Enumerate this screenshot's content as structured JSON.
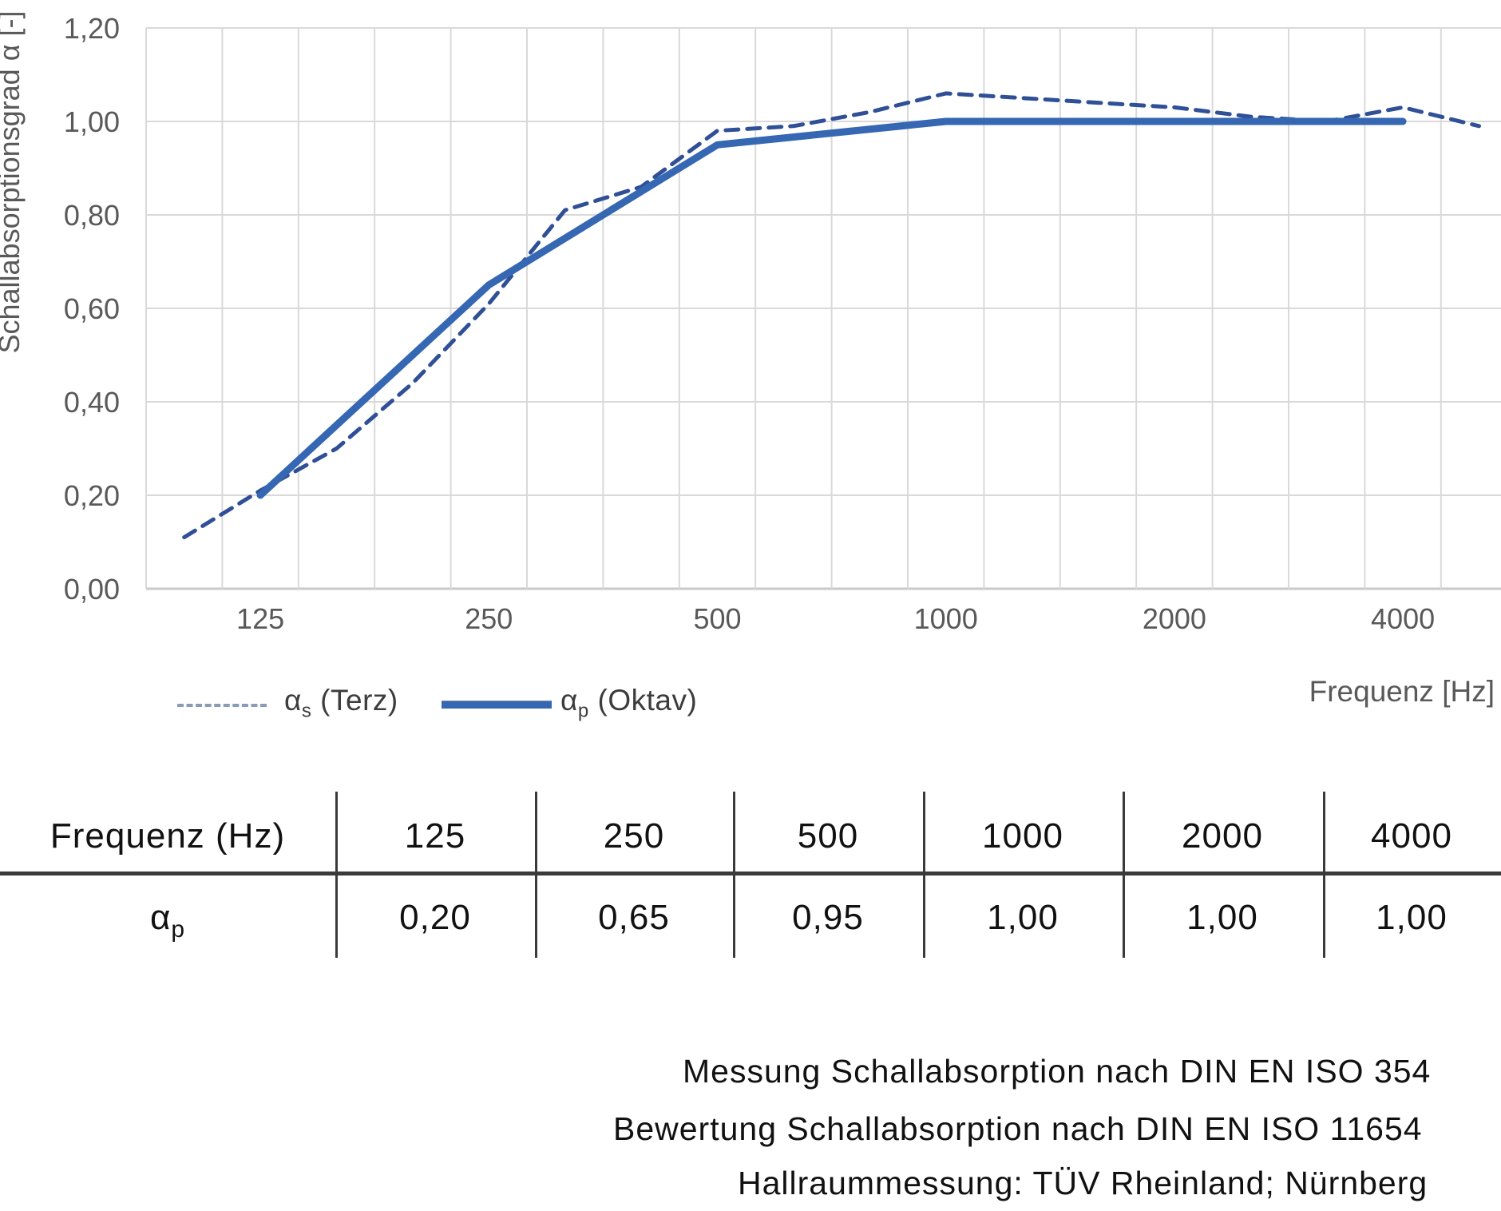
{
  "chart_data": {
    "type": "line",
    "title": "",
    "xlabel": "Frequenz [Hz]",
    "ylabel": "Schallabsorptionsgrad α [-]",
    "ylim": [
      0,
      1.2
    ],
    "grid": true,
    "legend_position": "bottom-left",
    "x_categories": [
      100,
      125,
      160,
      200,
      250,
      315,
      400,
      500,
      630,
      800,
      1000,
      1250,
      1600,
      2000,
      2500,
      3150,
      4000,
      5000
    ],
    "x_tick_shown": [
      125,
      250,
      500,
      1000,
      2000,
      4000
    ],
    "x_tick_labels": [
      "125",
      "250",
      "500",
      "1000",
      "2000",
      "4000"
    ],
    "ytick_values": [
      0,
      0.2,
      0.4,
      0.6,
      0.8,
      1.0,
      1.2
    ],
    "ytick_labels": [
      "0,00",
      "0,20",
      "0,40",
      "0,60",
      "0,80",
      "1,00",
      "1,20"
    ],
    "series": [
      {
        "name": "αs (Terz)",
        "style": "dashed",
        "color": "#2F4F96",
        "width": 5,
        "x": [
          100,
          125,
          160,
          200,
          250,
          315,
          400,
          500,
          630,
          800,
          1000,
          1250,
          1600,
          2000,
          2500,
          3150,
          4000,
          5000
        ],
        "values": [
          0.11,
          0.21,
          0.3,
          0.44,
          0.61,
          0.81,
          0.86,
          0.98,
          0.99,
          1.02,
          1.06,
          1.05,
          1.04,
          1.03,
          1.01,
          1.0,
          1.03,
          0.99
        ]
      },
      {
        "name": "αp (Oktav)",
        "style": "solid",
        "color": "#3567B2",
        "width": 9,
        "x": [
          125,
          250,
          500,
          1000,
          2000,
          4000
        ],
        "values": [
          0.2,
          0.65,
          0.95,
          1.0,
          1.0,
          1.0
        ]
      }
    ],
    "gridline_color": "#D9D9D9",
    "axis_text_color": "#595959"
  },
  "legend": {
    "terz": {
      "alpha": "α",
      "sub": "s",
      "rest": " (Terz)"
    },
    "oktav": {
      "alpha": "α",
      "sub": "p",
      "rest": " (Oktav)"
    }
  },
  "axis": {
    "y_title": "Schallabsorptionsgrad α [-]",
    "x_title": "Frequenz [Hz]"
  },
  "table": {
    "header_row": [
      "Frequenz (Hz)",
      "125",
      "250",
      "500",
      "1000",
      "2000",
      "4000"
    ],
    "value_row_label": {
      "alpha": "α",
      "sub": "p"
    },
    "values": [
      "0,20",
      "0,65",
      "0,95",
      "1,00",
      "1,00",
      "1,00"
    ]
  },
  "footer": {
    "line1": "Messung Schallabsorption nach DIN EN ISO 354",
    "line2": "Bewertung Schallabsorption nach DIN EN ISO 11654",
    "line3": "Hallraummessung: TÜV Rheinland; Nürnberg"
  }
}
